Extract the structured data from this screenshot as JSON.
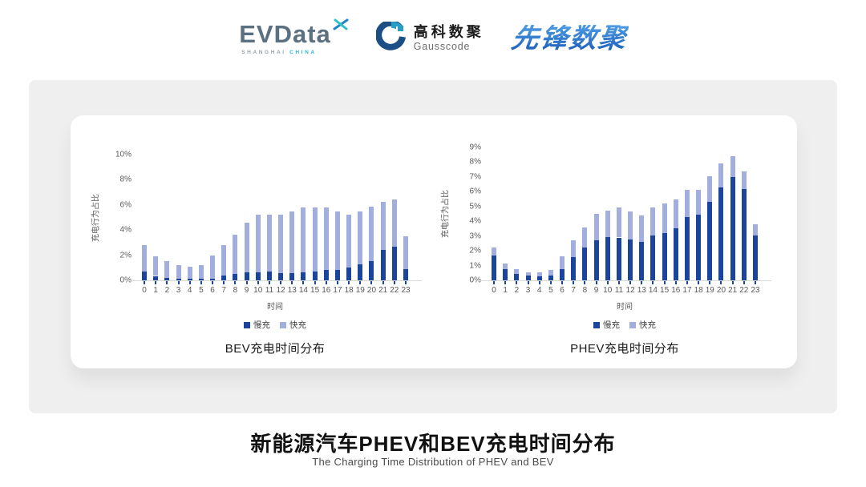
{
  "header": {
    "evdata": {
      "wordmark": "EVData",
      "sub_left": "SHANGHAI",
      "sub_right": "CHINA"
    },
    "gausscode": {
      "cn": "高科数聚",
      "en": "Gausscode"
    },
    "xianfeng": {
      "text": "先锋数聚"
    }
  },
  "footer": {
    "title": "新能源汽车PHEV和BEV充电时间分布",
    "subtitle": "The Charging Time Distribution of PHEV and BEV"
  },
  "colors": {
    "slow": "#1b459c",
    "fast": "#a2aedd",
    "axis_text": "#595959",
    "axis_line": "#d9d9d9",
    "card_gray": "#efeff0",
    "xianfeng_blue": "#2a7fd0",
    "gauss_navy": "#1c4e86",
    "gauss_teal": "#2a9ec4"
  },
  "chart_data": [
    {
      "type": "bar",
      "stacked": true,
      "title": "BEV充电时间分布",
      "xlabel": "时间",
      "ylabel": "充电行为占比",
      "categories": [
        0,
        1,
        2,
        3,
        4,
        5,
        6,
        7,
        8,
        9,
        10,
        11,
        12,
        13,
        14,
        15,
        16,
        17,
        18,
        19,
        20,
        21,
        22,
        23
      ],
      "series": [
        {
          "name": "慢充",
          "color": "#1b459c",
          "values": [
            0.7,
            0.35,
            0.2,
            0.15,
            0.1,
            0.1,
            0.15,
            0.4,
            0.5,
            0.65,
            0.65,
            0.7,
            0.6,
            0.6,
            0.65,
            0.7,
            0.8,
            0.85,
            1.0,
            1.3,
            1.5,
            2.4,
            2.65,
            0.9
          ]
        },
        {
          "name": "快充",
          "color": "#a2aedd",
          "values": [
            2.1,
            1.55,
            1.3,
            1.05,
            1.0,
            1.1,
            1.85,
            2.4,
            3.1,
            3.95,
            4.55,
            4.5,
            4.6,
            4.9,
            5.15,
            5.1,
            5.0,
            4.6,
            4.2,
            4.2,
            4.35,
            3.85,
            3.8,
            2.6
          ]
        }
      ],
      "ylim": [
        0,
        10
      ],
      "ytick_step": 2,
      "ytick_suffix": "%",
      "grid": false,
      "legend_position": "bottom"
    },
    {
      "type": "bar",
      "stacked": true,
      "title": "PHEV充电时间分布",
      "xlabel": "时间",
      "ylabel": "充电行为占比",
      "categories": [
        0,
        1,
        2,
        3,
        4,
        5,
        6,
        7,
        8,
        9,
        10,
        11,
        12,
        13,
        14,
        15,
        16,
        17,
        18,
        19,
        20,
        21,
        22,
        23
      ],
      "series": [
        {
          "name": "慢充",
          "color": "#1b459c",
          "values": [
            1.7,
            0.75,
            0.45,
            0.3,
            0.25,
            0.3,
            0.75,
            1.55,
            2.2,
            2.7,
            2.95,
            2.9,
            2.75,
            2.6,
            3.05,
            3.2,
            3.5,
            4.3,
            4.45,
            5.3,
            6.3,
            7.0,
            6.2,
            3.05
          ]
        },
        {
          "name": "快充",
          "color": "#a2aedd",
          "values": [
            0.5,
            0.4,
            0.3,
            0.25,
            0.3,
            0.4,
            0.85,
            1.15,
            1.4,
            1.8,
            1.75,
            2.05,
            1.9,
            1.8,
            1.9,
            2.0,
            1.95,
            1.8,
            1.65,
            1.75,
            1.6,
            1.4,
            1.2,
            0.75
          ]
        }
      ],
      "ylim": [
        0,
        9
      ],
      "ytick_step": 1,
      "ytick_suffix": "%",
      "grid": false,
      "legend_position": "bottom"
    }
  ]
}
